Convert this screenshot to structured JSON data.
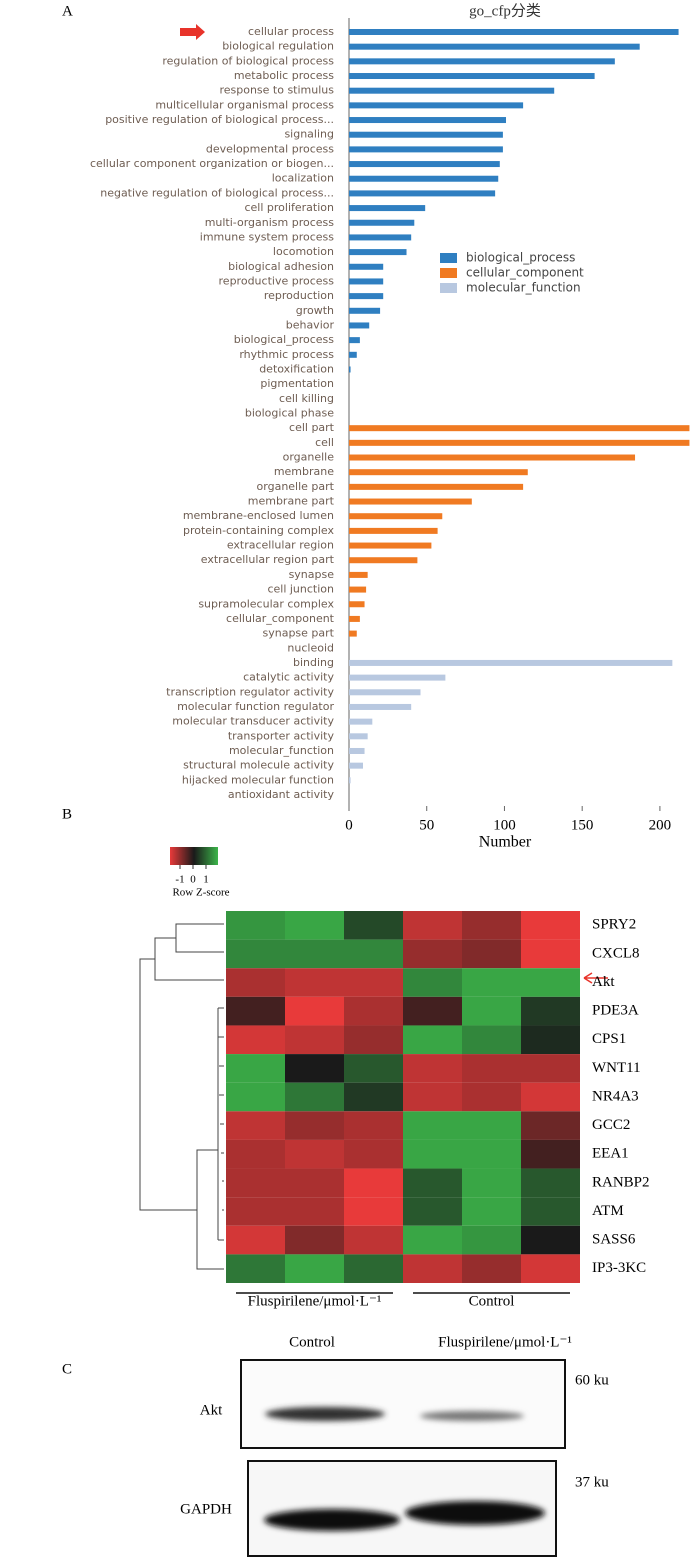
{
  "chart_data": [
    {
      "panel": "A",
      "type": "bar",
      "orientation": "horizontal",
      "title": "go_cfp分类",
      "x_label": "Number",
      "categories": [
        "cellular process",
        "biological regulation",
        "regulation of biological process",
        "metabolic process",
        "response to stimulus",
        "multicellular organismal process",
        "positive regulation of biological process...",
        "signaling",
        "developmental process",
        "cellular component organization or biogen...",
        "localization",
        "negative regulation of biological process...",
        "cell proliferation",
        "multi-organism process",
        "immune system process",
        "locomotion",
        "biological adhesion",
        "reproductive process",
        "reproduction",
        "growth",
        "behavior",
        "biological_process",
        "rhythmic process",
        "detoxification",
        "pigmentation",
        "cell killing",
        "biological phase",
        "cell part",
        "cell",
        "organelle",
        "membrane",
        "organelle part",
        "membrane part",
        "membrane-enclosed lumen",
        "protein-containing complex",
        "extracellular region",
        "extracellular region part",
        "synapse",
        "cell junction",
        "supramolecular complex",
        "cellular_component",
        "synapse part",
        "nucleoid",
        "binding",
        "catalytic activity",
        "transcription regulator activity",
        "molecular function regulator",
        "molecular transducer activity",
        "transporter activity",
        "molecular_function",
        "structural molecule activity",
        "hijacked molecular function",
        "antioxidant activity"
      ],
      "series": [
        {
          "name": "biological_process",
          "color": "#2f7fc1",
          "values": [
            212,
            187,
            171,
            158,
            132,
            112,
            101,
            99,
            99,
            97,
            96,
            94,
            49,
            42,
            40,
            37,
            22,
            22,
            22,
            20,
            13,
            7,
            5,
            1,
            0,
            0,
            0,
            null,
            null,
            null,
            null,
            null,
            null,
            null,
            null,
            null,
            null,
            null,
            null,
            null,
            null,
            null,
            null,
            null,
            null,
            null,
            null,
            null,
            null,
            null,
            null,
            null,
            null
          ]
        },
        {
          "name": "cellular_component",
          "color": "#f07a22",
          "values": [
            null,
            null,
            null,
            null,
            null,
            null,
            null,
            null,
            null,
            null,
            null,
            null,
            null,
            null,
            null,
            null,
            null,
            null,
            null,
            null,
            null,
            null,
            null,
            null,
            null,
            null,
            null,
            219,
            219,
            184,
            115,
            112,
            79,
            60,
            57,
            53,
            44,
            12,
            11,
            10,
            7,
            5,
            0,
            null,
            null,
            null,
            null,
            null,
            null,
            null,
            null,
            null,
            null
          ]
        },
        {
          "name": "molecular_function",
          "color": "#b8c8e0",
          "values": [
            null,
            null,
            null,
            null,
            null,
            null,
            null,
            null,
            null,
            null,
            null,
            null,
            null,
            null,
            null,
            null,
            null,
            null,
            null,
            null,
            null,
            null,
            null,
            null,
            null,
            null,
            null,
            null,
            null,
            null,
            null,
            null,
            null,
            null,
            null,
            null,
            null,
            null,
            null,
            null,
            null,
            null,
            null,
            208,
            62,
            46,
            40,
            15,
            12,
            10,
            9,
            1,
            0
          ]
        }
      ],
      "xlim": [
        0,
        220
      ],
      "xticks": [
        0,
        50,
        100,
        150,
        200
      ]
    },
    {
      "panel": "B",
      "type": "heatmap",
      "rows": [
        "SPRY2",
        "CXCL8",
        "Akt",
        "PDE3A",
        "CPS1",
        "WNT11",
        "NR4A3",
        "GCC2",
        "EEA1",
        "RANBP2",
        "ATM",
        "SASS6",
        "IP3-3KC"
      ],
      "values": [
        [
          0.8,
          0.9,
          0.3,
          -0.8,
          -0.6,
          -1
        ],
        [
          0.7,
          0.7,
          0.7,
          -0.6,
          -0.5,
          -1
        ],
        [
          -0.7,
          -0.8,
          -0.8,
          0.7,
          0.9,
          0.9
        ],
        [
          -0.2,
          -1,
          -0.7,
          -0.2,
          0.9,
          0.2
        ],
        [
          -0.9,
          -0.8,
          -0.6,
          0.9,
          0.7,
          0.1
        ],
        [
          0.9,
          0,
          0.4,
          -0.8,
          -0.7,
          -0.7
        ],
        [
          0.9,
          0.6,
          0.2,
          -0.8,
          -0.7,
          -0.9
        ],
        [
          -0.8,
          -0.6,
          -0.7,
          0.9,
          0.9,
          -0.4
        ],
        [
          -0.7,
          -0.8,
          -0.7,
          0.9,
          0.9,
          -0.2
        ],
        [
          -0.7,
          -0.7,
          -1,
          0.4,
          0.9,
          0.4
        ],
        [
          -0.7,
          -0.7,
          -1,
          0.4,
          0.9,
          0.4
        ],
        [
          -0.9,
          -0.5,
          -0.8,
          0.9,
          0.8,
          0
        ],
        [
          0.6,
          0.9,
          0.5,
          -0.8,
          -0.6,
          -0.9
        ]
      ],
      "groups": [
        {
          "name": "Fluspirilene/μmol·L⁻¹",
          "columns": 3
        },
        {
          "name": "Control",
          "columns": 3
        }
      ],
      "colorscale": {
        "lim": [
          -1,
          1
        ],
        "colors": [
          "#e83a3a",
          "#1a1a1a",
          "#3cb54a"
        ]
      },
      "colorbar_ticks": [
        -1,
        0,
        1
      ],
      "colorbar_label": "Row Z-score"
    }
  ],
  "blot": {
    "panel": "C",
    "columns": [
      "Control",
      "Fluspirilene/μmol·L⁻¹"
    ],
    "bands": [
      {
        "protein": "Akt",
        "size": "60 ku"
      },
      {
        "protein": "GAPDH",
        "size": "37 ku"
      }
    ]
  }
}
